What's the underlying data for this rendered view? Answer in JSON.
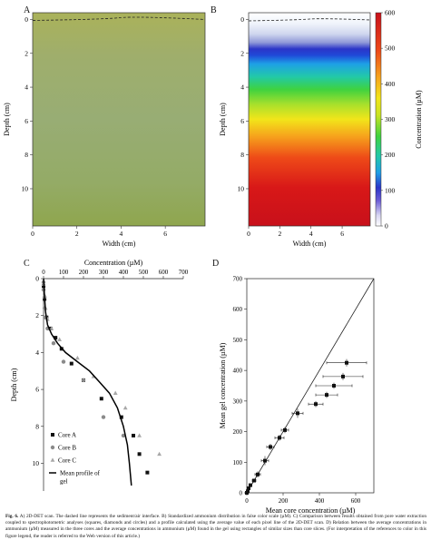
{
  "panels": {
    "a": {
      "letter": "A",
      "xlabel": "Width (cm)",
      "ylabel": "Depth (cm)",
      "xticks": [
        0,
        2,
        4,
        6
      ],
      "yticks": [
        0,
        2,
        4,
        6,
        8,
        10
      ],
      "xlim": [
        0,
        7.8
      ],
      "ylim": [
        -0.4,
        12.2
      ],
      "base_color": "#9aa752",
      "note": ""
    },
    "b": {
      "letter": "B",
      "xlabel": "Width (cm)",
      "ylabel": "Depth (cm)",
      "xticks": [
        0,
        2,
        4,
        6
      ],
      "yticks": [
        0,
        2,
        4,
        6,
        8,
        10
      ],
      "xlim": [
        0,
        7.8
      ],
      "ylim": [
        -0.4,
        12.2
      ],
      "colorbar_label": "Concentration (µM)",
      "colorbar_ticks": [
        0,
        100,
        200,
        300,
        400,
        500,
        600
      ],
      "colorbar_range": [
        0,
        600
      ]
    },
    "c": {
      "letter": "C",
      "xlabel": "Concentration (µM)",
      "ylabel": "Depth (cm)",
      "xticks": [
        0,
        100,
        200,
        300,
        400,
        500,
        600,
        700
      ],
      "yticks": [
        0,
        2,
        4,
        6,
        8,
        10
      ],
      "legend": {
        "core_a": "Core A",
        "core_b": "Core B",
        "core_c": "Core C",
        "mean_profile": "Mean profile of gel"
      }
    },
    "d": {
      "letter": "D",
      "xlabel": "Mean core concentration (µM)",
      "ylabel": "Mean gel concentration (µM)",
      "xticks": [
        0,
        200,
        400,
        600
      ],
      "yticks": [
        0,
        100,
        200,
        300,
        400,
        500,
        600,
        700
      ]
    }
  },
  "chart_data": [
    {
      "type": "scatter",
      "panel": "C",
      "xlabel": "Concentration (µM)",
      "ylabel": "Depth (cm)",
      "xlim": [
        0,
        700
      ],
      "ylim": [
        0,
        11.5
      ],
      "y_inverted": true,
      "x_axis_position": "top",
      "series": [
        {
          "name": "Core A",
          "marker": "square",
          "color": "#111111",
          "x": [
            0,
            5,
            15,
            35,
            60,
            90,
            140,
            200,
            290,
            390,
            450,
            480,
            520
          ],
          "y": [
            0.4,
            1.1,
            2.1,
            2.7,
            3.2,
            3.8,
            4.6,
            5.5,
            6.5,
            7.5,
            8.5,
            9.5,
            10.5
          ]
        },
        {
          "name": "Core B",
          "marker": "circle",
          "color": "#8a8a8a",
          "x": [
            0,
            0,
            5,
            5,
            10,
            20,
            50,
            100,
            200,
            300,
            400
          ],
          "y": [
            0.2,
            0.6,
            1.0,
            1.6,
            2.1,
            2.7,
            3.5,
            4.5,
            5.5,
            7.5,
            8.5
          ]
        },
        {
          "name": "Core C",
          "marker": "triangle",
          "color": "#a8a8a8",
          "x": [
            0,
            5,
            10,
            20,
            40,
            80,
            170,
            250,
            360,
            410,
            480,
            580
          ],
          "y": [
            0.3,
            0.9,
            1.6,
            2.2,
            2.7,
            3.3,
            4.3,
            5.3,
            6.2,
            7.0,
            8.5,
            9.5
          ]
        },
        {
          "name": "Mean profile of gel",
          "type": "line",
          "color": "#000000",
          "x": [
            0,
            5,
            10,
            20,
            40,
            70,
            110,
            170,
            230,
            280,
            330,
            370,
            400,
            420,
            430,
            440
          ],
          "y": [
            0,
            1.0,
            1.8,
            2.5,
            3.0,
            3.5,
            4.0,
            4.5,
            5.0,
            5.6,
            6.2,
            7.0,
            8.0,
            9.0,
            10.0,
            11.2
          ]
        }
      ]
    },
    {
      "type": "scatter",
      "panel": "D",
      "xlabel": "Mean core concentration (µM)",
      "ylabel": "Mean gel concentration (µM)",
      "xlim": [
        0,
        700
      ],
      "ylim": [
        0,
        700
      ],
      "reference_line": "1:1",
      "series": [
        {
          "name": "",
          "marker": "square",
          "color": "#111111",
          "x": [
            0,
            5,
            10,
            20,
            40,
            60,
            100,
            130,
            180,
            210,
            280,
            380,
            440,
            480,
            530,
            550
          ],
          "y": [
            0,
            5,
            15,
            25,
            40,
            60,
            105,
            150,
            180,
            205,
            260,
            290,
            320,
            350,
            380,
            425
          ],
          "x_err": [
            0,
            0,
            0,
            5,
            10,
            15,
            20,
            20,
            25,
            20,
            30,
            40,
            60,
            100,
            110,
            110
          ],
          "y_err": [
            0,
            0,
            0,
            0,
            5,
            10,
            15,
            10,
            10,
            10,
            15,
            10,
            10,
            10,
            12,
            12
          ]
        }
      ]
    }
  ],
  "caption": {
    "lead": "Fig. 6.",
    "text": "A) 2D-DET scan. The dashed line represents the sediment/air interface. B) Standardized ammonium distribution in false color scale (µM). C) Comparison between results obtained from pore water extraction coupled to spectrophotometric analyses (squares, diamonds and circles) and a profile calculated using the average value of each pixel line of the 2D-DET scan. D) Relation between the average concentrations in ammonium (µM) measured in the three cores and the average concentrations in ammonium (µM) found in the gel using rectangles of similar sizes than core slices. (For interpretation of the references to color in this figure legend, the reader is referred to the Web version of this article.)"
  }
}
